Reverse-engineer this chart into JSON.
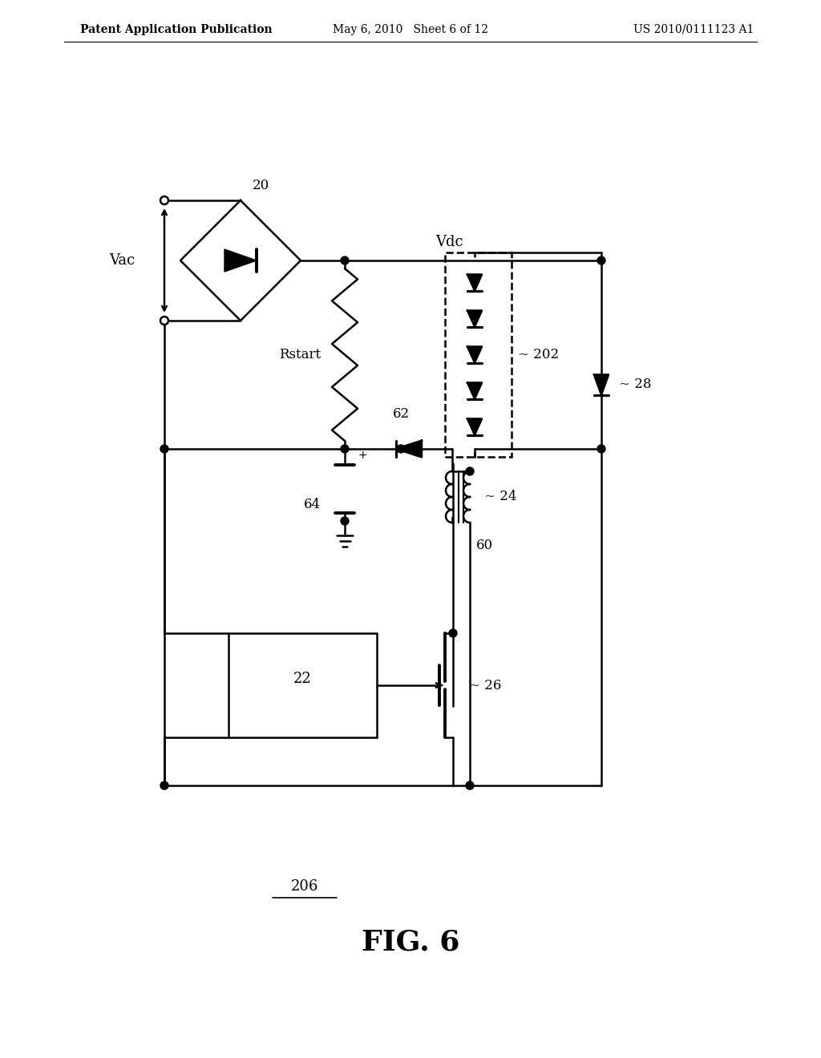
{
  "title": "FIG. 6",
  "header_left": "Patent Application Publication",
  "header_mid": "May 6, 2010   Sheet 6 of 12",
  "header_right": "US 2010/0111123 A1",
  "label_206": "206",
  "bg_color": "#ffffff",
  "line_color": "#000000",
  "lw": 1.8
}
